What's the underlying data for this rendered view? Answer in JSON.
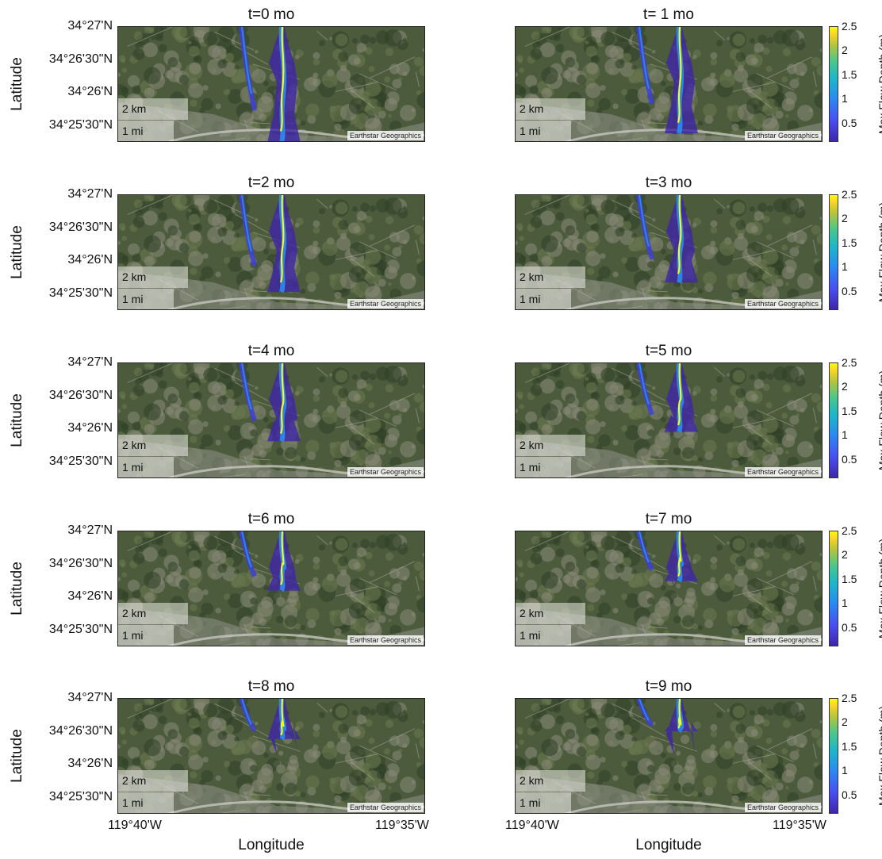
{
  "panels": [
    {
      "title": "t=0 mo"
    },
    {
      "title": "t= 1 mo"
    },
    {
      "title": "t=2 mo"
    },
    {
      "title": "t=3 mo"
    },
    {
      "title": "t=4 mo"
    },
    {
      "title": "t=5 mo"
    },
    {
      "title": "t=6 mo"
    },
    {
      "title": "t=7 mo"
    },
    {
      "title": "t=8 mo"
    },
    {
      "title": "t=9 mo"
    }
  ],
  "axes": {
    "ylabel": "Latitude",
    "xlabel": "Longitude",
    "lat_ticks": [
      "34°27'N",
      "34°26'30\"N",
      "34°26'N",
      "34°25'30\"N"
    ],
    "lon_ticks": [
      "119°40'W",
      "119°35'W"
    ]
  },
  "map_overlay": {
    "scale_km": "2 km",
    "scale_mi": "1 mi",
    "attribution": "Earthstar Geographics"
  },
  "colorbar": {
    "label": "Max Flow Depth (m)",
    "ticks": [
      "2.5",
      "2",
      "1.5",
      "1",
      "0.5"
    ],
    "range": [
      0.1,
      2.5
    ],
    "colormap": "parula"
  },
  "colors": {
    "flow_shallow": "#3e26a8",
    "flow_mid": "#2a8cf0",
    "flow_deep": "#f9fb0e",
    "terrain": "#4a5a3a"
  }
}
